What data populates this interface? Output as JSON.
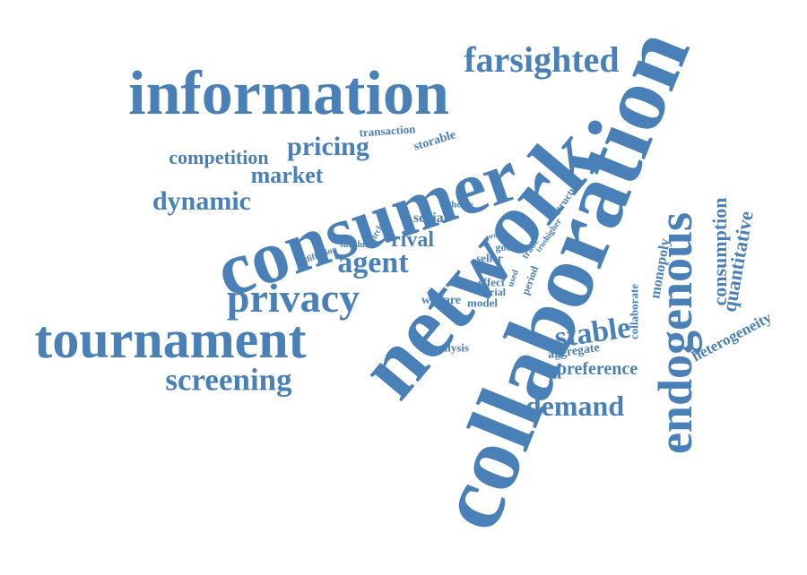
{
  "color": "#4a80b8",
  "words": [
    {
      "key": "information",
      "text": "information"
    },
    {
      "key": "farsighted",
      "text": "farsighted"
    },
    {
      "key": "transaction",
      "text": "transaction"
    },
    {
      "key": "pricing",
      "text": "pricing"
    },
    {
      "key": "storable",
      "text": "storable"
    },
    {
      "key": "competition",
      "text": "competition"
    },
    {
      "key": "market",
      "text": "market"
    },
    {
      "key": "dynamic",
      "text": "dynamic"
    },
    {
      "key": "consumer",
      "text": "consumer"
    },
    {
      "key": "network",
      "text": "network"
    },
    {
      "key": "collaboration",
      "text": "collaboration"
    },
    {
      "key": "endogenous",
      "text": "endogenous"
    },
    {
      "key": "consumption",
      "text": "consumption"
    },
    {
      "key": "quantitative",
      "text": "quantitative"
    },
    {
      "key": "monopoly",
      "text": "monopoly"
    },
    {
      "key": "collaborate",
      "text": "collaborate"
    },
    {
      "key": "heterogeneity",
      "text": "heterogeneity"
    },
    {
      "key": "privacy",
      "text": "privacy"
    },
    {
      "key": "agent",
      "text": "agent"
    },
    {
      "key": "rival",
      "text": "rival"
    },
    {
      "key": "social",
      "text": "social"
    },
    {
      "key": "choice",
      "text": "choice"
    },
    {
      "key": "structure",
      "text": "structure"
    },
    {
      "key": "higher",
      "text": "higher"
    },
    {
      "key": "trust",
      "text": "trust"
    },
    {
      "key": "trade",
      "text": "trade"
    },
    {
      "key": "profit",
      "text": "profit"
    },
    {
      "key": "good",
      "text": "good"
    },
    {
      "key": "seller",
      "text": "seller"
    },
    {
      "key": "circle",
      "text": "circle"
    },
    {
      "key": "surplus",
      "text": "surplus"
    },
    {
      "key": "diffusion",
      "text": "diffusion"
    },
    {
      "key": "effect",
      "text": "effect"
    },
    {
      "key": "used",
      "text": "used"
    },
    {
      "key": "period",
      "text": "period"
    },
    {
      "key": "serial",
      "text": "serial"
    },
    {
      "key": "welfare",
      "text": "welfare"
    },
    {
      "key": "model",
      "text": "model"
    },
    {
      "key": "tournament",
      "text": "tournament"
    },
    {
      "key": "stable",
      "text": "stable"
    },
    {
      "key": "aggregate",
      "text": "aggregate"
    },
    {
      "key": "analysis",
      "text": "analysis"
    },
    {
      "key": "preference",
      "text": "preference"
    },
    {
      "key": "screening",
      "text": "screening"
    },
    {
      "key": "demand",
      "text": "demand"
    }
  ]
}
